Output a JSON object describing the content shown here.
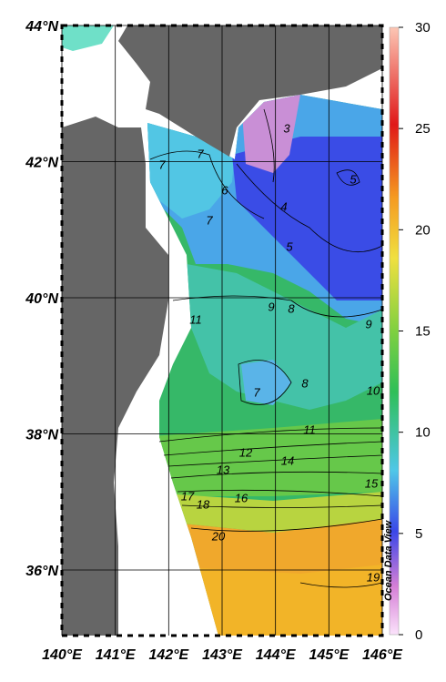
{
  "map": {
    "lat_labels": [
      "44°N",
      "42°N",
      "40°N",
      "38°N",
      "36°N"
    ],
    "lon_labels": [
      "140°E",
      "141°E",
      "142°E",
      "143°E",
      "144°E",
      "145°E",
      "146°E"
    ],
    "contour_labels": [
      "3",
      "5",
      "7",
      "7",
      "6",
      "4",
      "7",
      "5",
      "9",
      "8",
      "9",
      "11",
      "7",
      "8",
      "10",
      "11",
      "12",
      "14",
      "13",
      "15",
      "17",
      "18",
      "16",
      "20",
      "19"
    ],
    "watermark": "Ocean Data View"
  },
  "colorbar": {
    "lim": [
      0,
      30
    ],
    "ticks": [
      0,
      5,
      10,
      15,
      20,
      25,
      30
    ]
  }
}
